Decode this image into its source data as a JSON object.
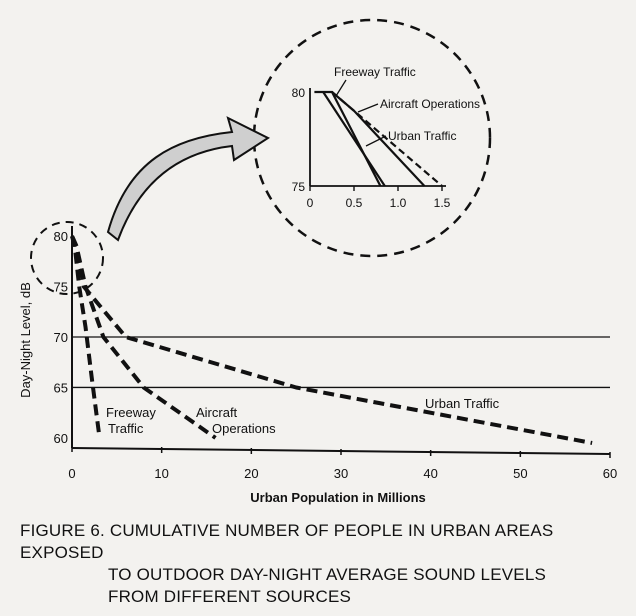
{
  "chart_data": [
    {
      "type": "line",
      "title": "",
      "xlabel": "Urban Population in Millions",
      "ylabel": "Day-Night Level, dB",
      "xlim": [
        0,
        60
      ],
      "ylim": [
        59,
        81
      ],
      "x_ticks": [
        "0",
        "10",
        "20",
        "30",
        "40",
        "50",
        "60"
      ],
      "y_ticks": [
        "60",
        "65",
        "70",
        "75",
        "80"
      ],
      "series": [
        {
          "name": "Freeway Traffic",
          "label": [
            "Freeway",
            "Traffic"
          ],
          "points": [
            [
              0,
              80
            ],
            [
              0.3,
              79
            ],
            [
              0.8,
              75
            ],
            [
              1.5,
              71
            ],
            [
              2.2,
              66
            ],
            [
              3,
              60.5
            ]
          ]
        },
        {
          "name": "Aircraft Operations",
          "label": [
            "Aircraft",
            "Operations"
          ],
          "points": [
            [
              0,
              80
            ],
            [
              0.5,
              79
            ],
            [
              1.5,
              75
            ],
            [
              3.5,
              70
            ],
            [
              8,
              65
            ],
            [
              16,
              60
            ]
          ]
        },
        {
          "name": "Urban Traffic",
          "label": [
            "Urban Traffic"
          ],
          "points": [
            [
              0,
              80
            ],
            [
              0.5,
              79
            ],
            [
              1.3,
              75
            ],
            [
              6,
              70
            ],
            [
              25,
              65
            ],
            [
              58,
              59.5
            ]
          ]
        }
      ],
      "grid": "horizontal lines at 65 and 70"
    },
    {
      "type": "line",
      "title": "",
      "xlim": [
        0,
        1.5
      ],
      "ylim": [
        75,
        80
      ],
      "x_ticks": [
        "0",
        "0.5",
        "1.0",
        "1.5"
      ],
      "y_ticks": [
        "75",
        "80"
      ],
      "series": [
        {
          "name": "Freeway Traffic",
          "style": "solid",
          "points": [
            [
              0.05,
              80
            ],
            [
              0.25,
              80
            ],
            [
              0.8,
              75
            ]
          ]
        },
        {
          "name": "Freeway Traffic",
          "style": "solid",
          "points": [
            [
              0.25,
              80
            ],
            [
              0.5,
              79
            ],
            [
              1.3,
              75
            ]
          ]
        },
        {
          "name": "Aircraft Operations",
          "style": "dashed",
          "points": [
            [
              0.25,
              80
            ],
            [
              1.5,
              75
            ]
          ]
        },
        {
          "name": "Urban Traffic",
          "style": "solid",
          "points": [
            [
              0.15,
              80
            ],
            [
              0.85,
              75
            ]
          ]
        }
      ],
      "annotations": [
        "Freeway Traffic",
        "Aircraft Operations",
        "Urban Traffic"
      ]
    }
  ],
  "caption": {
    "line1": "FIGURE 6. CUMULATIVE NUMBER OF PEOPLE IN URBAN AREAS EXPOSED",
    "line2": "TO OUTDOOR DAY-NIGHT AVERAGE SOUND LEVELS",
    "line3": "FROM DIFFERENT SOURCES"
  },
  "colors": {
    "ink": "#111111",
    "paper": "#f3f2ef",
    "arrow_fill": "#cfcfcf"
  }
}
